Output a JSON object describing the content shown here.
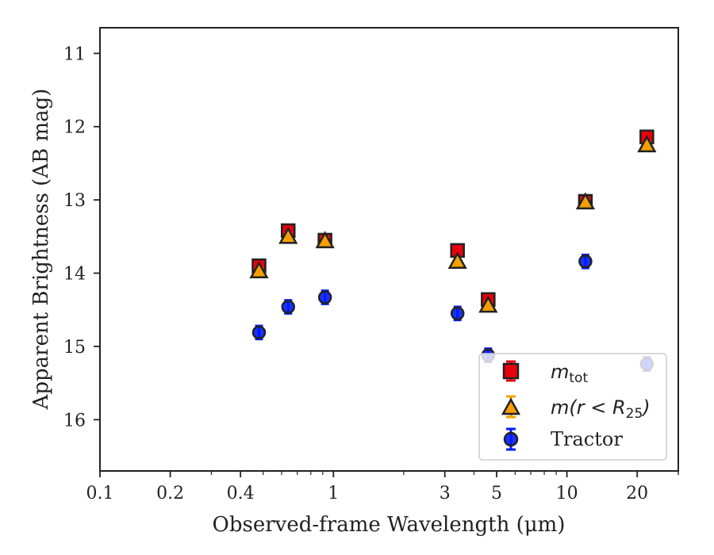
{
  "chart_data": {
    "type": "scatter",
    "xlabel": "Observed-frame Wavelength (μm)",
    "ylabel": "Apparent Brightness (AB mag)",
    "xscale": "log",
    "xlim": [
      0.1,
      30
    ],
    "ylim": [
      16.7,
      10.65
    ],
    "y_inverted": true,
    "x_ticks": [
      0.1,
      0.2,
      0.4,
      1,
      3,
      5,
      10,
      20
    ],
    "x_tick_labels": [
      "0.1",
      "0.2",
      "0.4",
      "1",
      "3",
      "5",
      "10",
      "20"
    ],
    "y_ticks": [
      11,
      12,
      13,
      14,
      15,
      16
    ],
    "y_tick_labels": [
      "11",
      "12",
      "13",
      "14",
      "15",
      "16"
    ],
    "legend": {
      "placement": "lower-right"
    },
    "series": [
      {
        "name": "m_tot",
        "marker": "square",
        "color": "#e8000b",
        "points": [
          {
            "x": 0.48,
            "y": 13.9,
            "err": 0.06
          },
          {
            "x": 0.64,
            "y": 13.42,
            "err": 0.06
          },
          {
            "x": 0.92,
            "y": 13.55,
            "err": 0.06
          },
          {
            "x": 3.4,
            "y": 13.69,
            "err": 0.06
          },
          {
            "x": 4.6,
            "y": 14.36,
            "err": 0.06
          },
          {
            "x": 12.0,
            "y": 13.02,
            "err": 0.06
          },
          {
            "x": 22.0,
            "y": 12.14,
            "err": 0.06
          }
        ]
      },
      {
        "name": "m(r<R25)",
        "marker": "triangle",
        "color": "#f5a000",
        "points": [
          {
            "x": 0.48,
            "y": 13.97,
            "err": 0.04
          },
          {
            "x": 0.64,
            "y": 13.5,
            "err": 0.04
          },
          {
            "x": 0.92,
            "y": 13.56,
            "err": 0.04
          },
          {
            "x": 3.4,
            "y": 13.84,
            "err": 0.04
          },
          {
            "x": 4.6,
            "y": 14.44,
            "err": 0.04
          },
          {
            "x": 12.0,
            "y": 13.03,
            "err": 0.04
          },
          {
            "x": 22.0,
            "y": 12.25,
            "err": 0.04
          }
        ]
      },
      {
        "name": "Tractor",
        "marker": "circle",
        "color": "#0019ff",
        "points": [
          {
            "x": 0.48,
            "y": 14.81,
            "err": 0.09
          },
          {
            "x": 0.64,
            "y": 14.46,
            "err": 0.09
          },
          {
            "x": 0.92,
            "y": 14.33,
            "err": 0.09
          },
          {
            "x": 3.4,
            "y": 14.55,
            "err": 0.09
          },
          {
            "x": 4.6,
            "y": 15.12,
            "err": 0.09
          },
          {
            "x": 12.0,
            "y": 13.84,
            "err": 0.09
          },
          {
            "x": 22.0,
            "y": 15.24,
            "err": 0.09
          }
        ]
      }
    ]
  },
  "legend_labels": {
    "m_tot_base": "m",
    "m_tot_sub": "tot",
    "m_r_part1": "m(r < R",
    "m_r_sub": "25",
    "m_r_part2": ")",
    "tractor": "Tractor"
  }
}
